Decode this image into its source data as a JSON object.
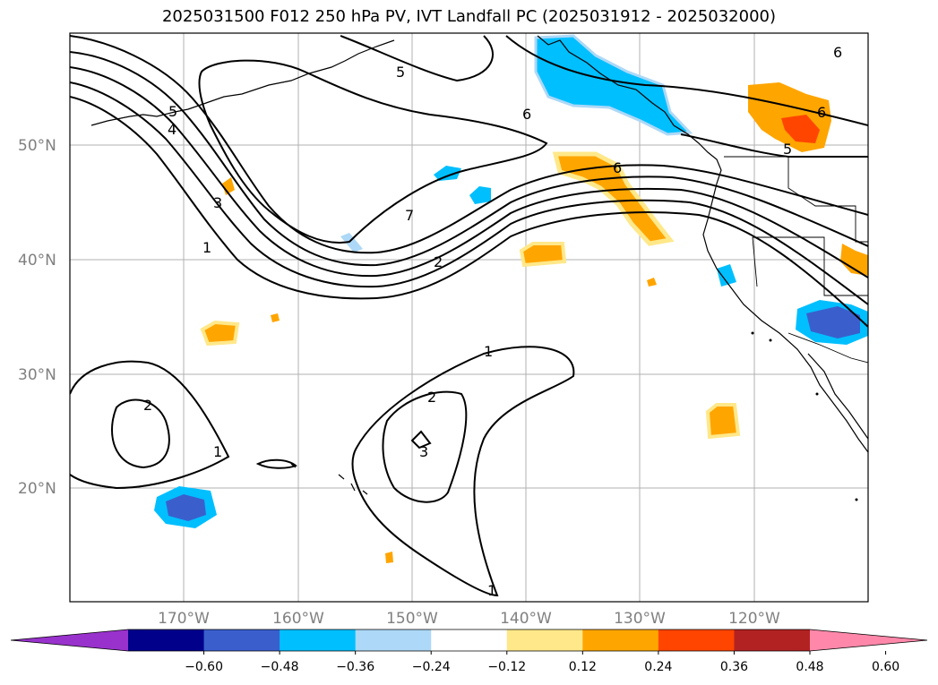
{
  "title": "2025031500 F012 250 hPa PV, IVT Landfall PC (2025031912 - 2025032000)",
  "lat_labels": [
    "50°N",
    "40°N",
    "30°N",
    "20°N"
  ],
  "lon_labels": [
    "170°W",
    "160°W",
    "150°W",
    "140°W",
    "130°W",
    "120°W"
  ],
  "colorbar": {
    "ticks": [
      "−0.60",
      "−0.48",
      "−0.36",
      "−0.24",
      "−0.12",
      "0.12",
      "0.24",
      "0.36",
      "0.48",
      "0.60"
    ],
    "colors": [
      "#9932cc",
      "#00008b",
      "#3a5fcd",
      "#00bfff",
      "#add8f7",
      "#ffffff",
      "#ffe88a",
      "#ffa500",
      "#ff4500",
      "#b22222",
      "#ff88aa"
    ]
  },
  "contour_labels": [
    "1",
    "2",
    "3",
    "4",
    "5",
    "6",
    "7",
    "1",
    "2",
    "3",
    "2",
    "1",
    "1",
    "6",
    "6",
    "5",
    "5",
    "6"
  ]
}
